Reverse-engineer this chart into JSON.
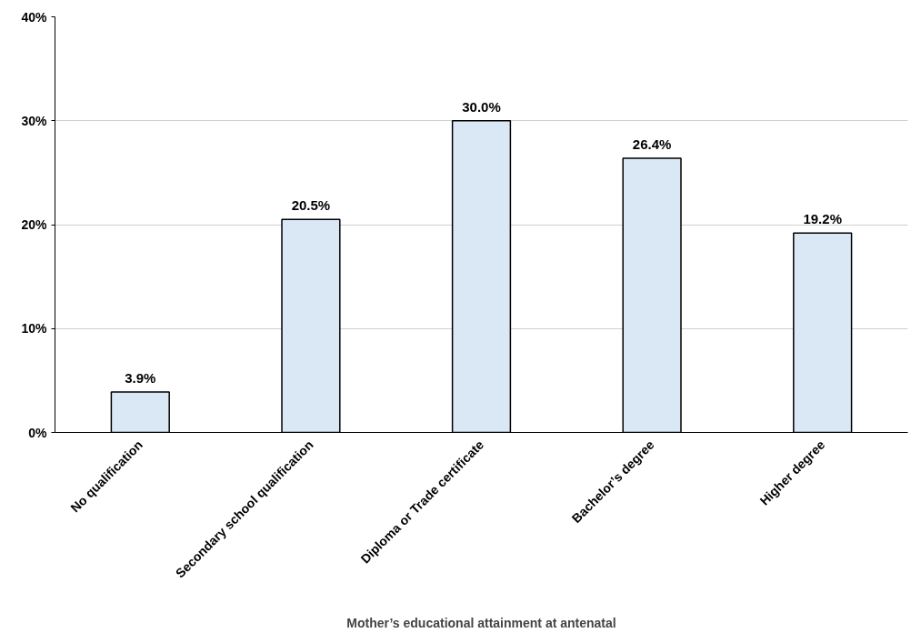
{
  "chart_data": {
    "type": "bar",
    "xlabel": "Mother’s educational attainment at antenatal",
    "categories": [
      "No qualification",
      "Secondary school qualification",
      "Diploma or Trade certificate",
      "Bachelor’s degree",
      "Higher degree"
    ],
    "values": [
      3.9,
      20.5,
      30.0,
      26.4,
      19.2
    ],
    "value_labels": [
      "3.9%",
      "20.5%",
      "30.0%",
      "26.4%",
      "19.2%"
    ],
    "color": "#dae8f5",
    "ylim": [
      0,
      40
    ],
    "yticks": [
      {
        "value": 0,
        "label": "0%"
      },
      {
        "value": 10,
        "label": "10%"
      },
      {
        "value": 20,
        "label": "20%"
      },
      {
        "value": 30,
        "label": "30%"
      },
      {
        "value": 40,
        "label": "40%"
      }
    ],
    "grid": "y"
  }
}
